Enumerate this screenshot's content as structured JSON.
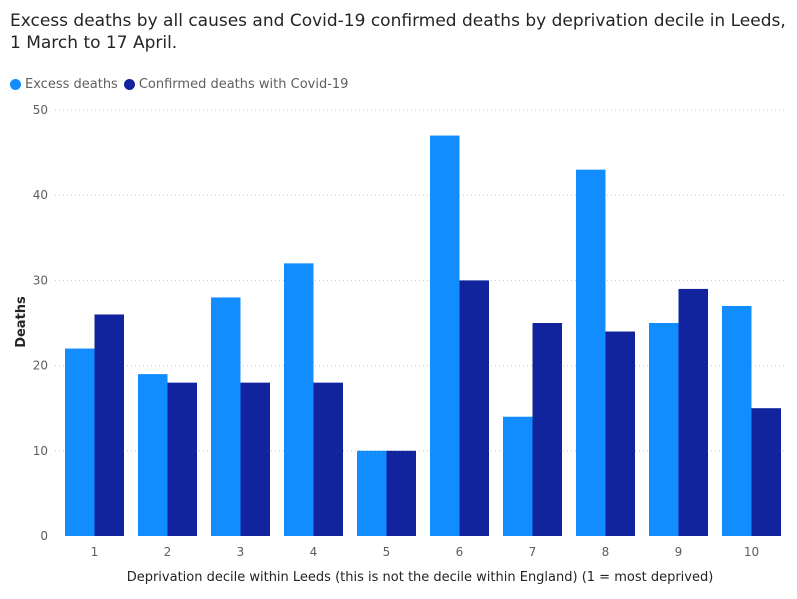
{
  "chart_data": {
    "type": "bar",
    "title_line1": "Excess deaths by all causes and Covid-19 confirmed deaths by deprivation decile in Leeds,",
    "title_line2": "1 March to 17 April.",
    "xlabel": "Deprivation decile within Leeds (this is not the decile within England) (1 = most deprived)",
    "ylabel": "Deaths",
    "ylim": [
      0,
      50
    ],
    "yticks": [
      0,
      10,
      20,
      30,
      40,
      50
    ],
    "grid": true,
    "legend_position": "top-left",
    "categories": [
      "1",
      "2",
      "3",
      "4",
      "5",
      "6",
      "7",
      "8",
      "9",
      "10"
    ],
    "series": [
      {
        "name": "Excess deaths",
        "color": "#118dff",
        "values": [
          22,
          19,
          28,
          32,
          10,
          47,
          14,
          43,
          25,
          27
        ]
      },
      {
        "name": "Confirmed deaths with Covid-19",
        "color": "#12239e",
        "values": [
          26,
          18,
          18,
          18,
          10,
          30,
          25,
          24,
          29,
          15
        ]
      }
    ]
  }
}
